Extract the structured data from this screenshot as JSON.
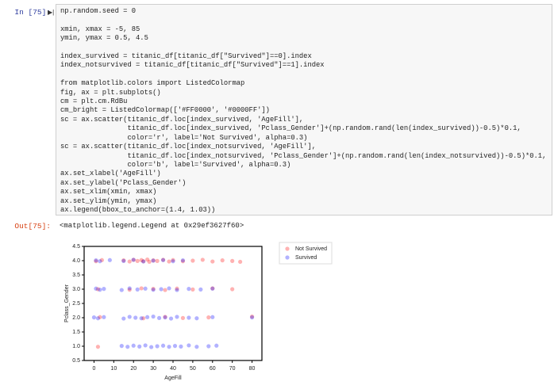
{
  "cell": {
    "in_prompt": "In [75]:",
    "code": "np.random.seed = 0\n\nxmin, xmax = -5, 85\nymin, ymax = 0.5, 4.5\n\nindex_survived = titanic_df[titanic_df[\"Survived\"]==0].index\nindex_notsurvived = titanic_df[titanic_df[\"Survived\"]==1].index\n\nfrom matplotlib.colors import ListedColormap\nfig, ax = plt.subplots()\ncm = plt.cm.RdBu\ncm_bright = ListedColormap(['#FF0000', '#0000FF'])\nsc = ax.scatter(titanic_df.loc[index_survived, 'AgeFill'],\n                titanic_df.loc[index_survived, 'Pclass_Gender']+(np.random.rand(len(index_survived))-0.5)*0.1,\n                color='r', label='Not Survived', alpha=0.3)\nsc = ax.scatter(titanic_df.loc[index_notsurvived, 'AgeFill'],\n                titanic_df.loc[index_notsurvived, 'Pclass_Gender']+(np.random.rand(len(index_notsurvived))-0.5)*0.1,\n                color='b', label='Survived', alpha=0.3)\nax.set_xlabel('AgeFill')\nax.set_ylabel('Pclass_Gender')\nax.set_xlim(xmin, xmax)\nax.set_ylim(ymin, ymax)\nax.legend(bbox_to_anchor=(1.4, 1.03))",
    "out_prompt": "Out[75]:",
    "output": "<matplotlib.legend.Legend at 0x29ef3627f60>"
  },
  "chart_data": {
    "type": "scatter",
    "x_label": "AgeFill",
    "y_label": "Pclass_Gender",
    "xlim": [
      -5,
      85
    ],
    "ylim": [
      0.5,
      4.5
    ],
    "xticks": [
      0,
      10,
      20,
      30,
      40,
      50,
      60,
      70,
      80
    ],
    "yticks": [
      0.5,
      {
        "value": 1,
        "label": "1.0"
      },
      1.5,
      {
        "value": 2,
        "label": "2.0"
      },
      2.5,
      {
        "value": 3,
        "label": "3.0"
      },
      3.5,
      {
        "value": 4,
        "label": "4.0"
      },
      4.5
    ],
    "legend": "outside-right",
    "series": [
      {
        "name": "Not Survived",
        "color": "#ff0000",
        "alpha": 0.3,
        "x": [
          1,
          4,
          15,
          18,
          20,
          22,
          24,
          25,
          27,
          28,
          30,
          32,
          35,
          38,
          40,
          45,
          50,
          55,
          60,
          65,
          70,
          74,
          2,
          18,
          24,
          30,
          36,
          42,
          50,
          60,
          70,
          3,
          25,
          36,
          45,
          58,
          80,
          2
        ],
        "values": [
          3.98,
          4.02,
          4.01,
          3.97,
          4.03,
          3.99,
          4.02,
          3.98,
          4.04,
          3.96,
          4.01,
          3.99,
          4.03,
          3.97,
          4.02,
          3.98,
          4.0,
          4.03,
          3.97,
          4.01,
          3.99,
          3.96,
          3.0,
          2.98,
          3.03,
          3.01,
          2.97,
          3.02,
          2.99,
          3.03,
          3.0,
          2.02,
          1.98,
          2.03,
          1.99,
          2.01,
          2.04,
          0.98
        ]
      },
      {
        "name": "Survived",
        "color": "#0000ff",
        "alpha": 0.3,
        "x": [
          1,
          3,
          8,
          15,
          20,
          25,
          30,
          35,
          40,
          45,
          1,
          3,
          5,
          14,
          18,
          22,
          26,
          30,
          34,
          38,
          42,
          48,
          54,
          60,
          0,
          2,
          5,
          15,
          18,
          21,
          24,
          27,
          30,
          33,
          36,
          39,
          42,
          48,
          52,
          60,
          80,
          14,
          17,
          20,
          23,
          26,
          29,
          32,
          35,
          38,
          41,
          44,
          48,
          52,
          58,
          62
        ],
        "values": [
          4.01,
          3.98,
          4.02,
          3.99,
          4.03,
          3.97,
          4.0,
          4.02,
          3.98,
          4.01,
          3.02,
          2.98,
          3.01,
          2.97,
          3.03,
          2.99,
          3.02,
          2.98,
          3.0,
          3.03,
          2.97,
          3.01,
          2.99,
          3.02,
          2.01,
          1.98,
          2.02,
          1.97,
          2.03,
          2.0,
          1.98,
          2.02,
          2.04,
          1.99,
          2.01,
          1.97,
          2.03,
          2.0,
          1.98,
          2.02,
          2.01,
          1.01,
          0.98,
          1.02,
          0.99,
          1.03,
          0.97,
          1.0,
          1.02,
          0.98,
          1.01,
          0.99,
          1.03,
          0.98,
          1.0,
          1.02
        ]
      }
    ]
  }
}
